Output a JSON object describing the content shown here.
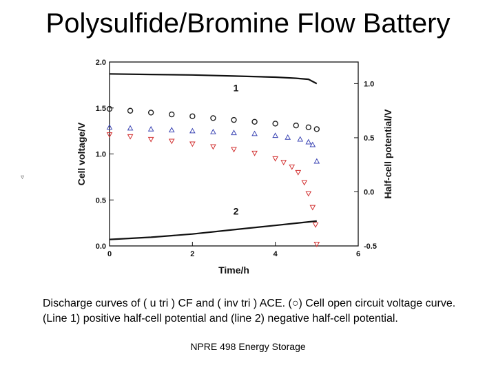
{
  "slide": {
    "title": "Polysulfide/Bromine Flow Battery",
    "stray_mark": "▿",
    "caption": "Discharge curves of ( u tri ) CF and ( inv tri ) ACE. (○) Cell open circuit voltage curve. (Line 1) positive half-cell potential and (line 2) negative half-cell potential.",
    "footer": "NPRE 498 Energy Storage"
  },
  "chart_data": {
    "type": "scatter",
    "xlabel": "Time/h",
    "ylabel": "Cell voltage/V",
    "y2label": "Half-cell potential/V",
    "xlim": [
      0,
      6
    ],
    "ylim": [
      0,
      2.0
    ],
    "y2lim": [
      -0.5,
      1.2
    ],
    "xticks": [
      "0",
      "2",
      "4",
      "6"
    ],
    "yticks": [
      "0.0",
      "0.5",
      "1.0",
      "1.5",
      "2.0"
    ],
    "y2ticks": [
      "-0.5",
      "0.0",
      "0.5",
      "1.0"
    ],
    "line_labels": [
      "1",
      "2"
    ],
    "colors": {
      "ocv": "#222222",
      "cf": "#3c46b4",
      "ace": "#d23232",
      "lines": "#111111"
    },
    "series": [
      {
        "marker": "circle",
        "color_key": "ocv",
        "axis": "left",
        "x": [
          0.0,
          0.5,
          1.0,
          1.5,
          2.0,
          2.5,
          3.0,
          3.5,
          4.0,
          4.5,
          4.8,
          5.0
        ],
        "y": [
          1.49,
          1.47,
          1.45,
          1.43,
          1.41,
          1.39,
          1.37,
          1.35,
          1.33,
          1.31,
          1.29,
          1.27
        ]
      },
      {
        "marker": "triangle-up",
        "color_key": "cf",
        "axis": "left",
        "x": [
          0.0,
          0.5,
          1.0,
          1.5,
          2.0,
          2.5,
          3.0,
          3.5,
          4.0,
          4.3,
          4.6,
          4.8,
          4.9,
          5.0
        ],
        "y": [
          1.29,
          1.28,
          1.27,
          1.26,
          1.25,
          1.24,
          1.23,
          1.22,
          1.2,
          1.18,
          1.16,
          1.13,
          1.1,
          0.92
        ]
      },
      {
        "marker": "triangle-down",
        "color_key": "ace",
        "axis": "left",
        "x": [
          0.0,
          0.5,
          1.0,
          1.5,
          2.0,
          2.5,
          3.0,
          3.5,
          4.0,
          4.2,
          4.4,
          4.55,
          4.7,
          4.8,
          4.9,
          4.97,
          5.0
        ],
        "y": [
          1.21,
          1.19,
          1.16,
          1.14,
          1.11,
          1.08,
          1.05,
          1.01,
          0.95,
          0.91,
          0.86,
          0.8,
          0.69,
          0.57,
          0.42,
          0.23,
          0.02
        ]
      },
      {
        "marker": "line",
        "color_key": "lines",
        "axis": "right",
        "label": "1",
        "x": [
          0.0,
          1.0,
          2.0,
          3.0,
          4.0,
          4.5,
          4.8,
          5.0
        ],
        "y": [
          1.09,
          1.085,
          1.08,
          1.07,
          1.06,
          1.05,
          1.04,
          1.0
        ]
      },
      {
        "marker": "line",
        "color_key": "lines",
        "axis": "right",
        "label": "2",
        "x": [
          0.0,
          1.0,
          2.0,
          3.0,
          4.0,
          4.5,
          5.0
        ],
        "y": [
          -0.44,
          -0.42,
          -0.39,
          -0.35,
          -0.31,
          -0.29,
          -0.27
        ]
      }
    ]
  }
}
